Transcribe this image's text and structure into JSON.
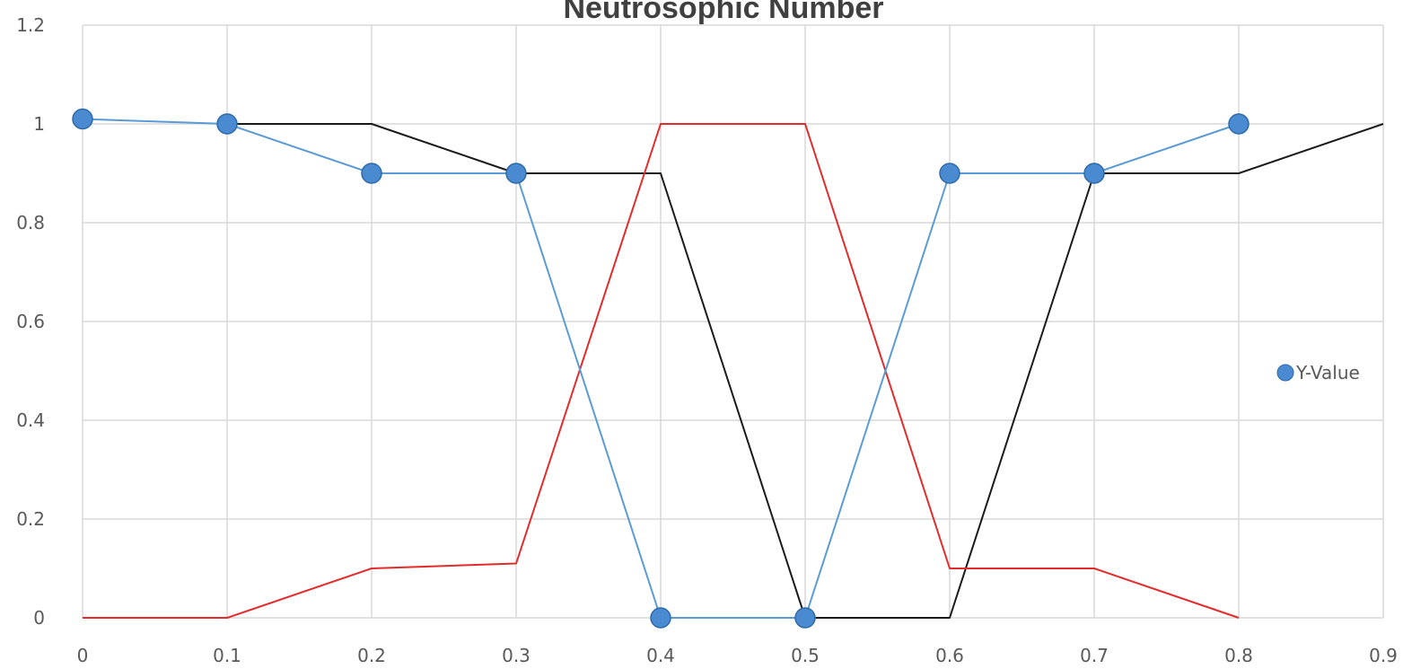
{
  "chart_data": {
    "type": "line",
    "title": "Neutrosophic Number",
    "xlabel": "",
    "ylabel": "",
    "xlim": [
      0,
      0.9
    ],
    "ylim": [
      0,
      1.2
    ],
    "x_ticks": [
      "0",
      "0.1",
      "0.2",
      "0.3",
      "0.4",
      "0.5",
      "0.6",
      "0.7",
      "0.8",
      "0.9"
    ],
    "y_ticks": [
      "0",
      "0.2",
      "0.4",
      "0.6",
      "0.8",
      "1",
      "1.2"
    ],
    "grid": true,
    "legend_position": "right",
    "series": [
      {
        "name": "Y-Value",
        "color": "#5b9bd5",
        "markers": true,
        "x": [
          0,
          0.1,
          0.2,
          0.3,
          0.4,
          0.5,
          0.6,
          0.7,
          0.8
        ],
        "values": [
          1.01,
          1.0,
          0.9,
          0.9,
          0.0,
          0.0,
          0.9,
          0.9,
          1.0
        ]
      },
      {
        "color": "#1a1a1a",
        "markers": false,
        "x": [
          0.1,
          0.2,
          0.3,
          0.4,
          0.5,
          0.6,
          0.7,
          0.8,
          0.9
        ],
        "values": [
          1.0,
          1.0,
          0.9,
          0.9,
          0.0,
          0.0,
          0.9,
          0.9,
          1.0
        ]
      },
      {
        "color": "#e32b2b",
        "markers": false,
        "x": [
          0,
          0.1,
          0.2,
          0.3,
          0.4,
          0.5,
          0.6,
          0.7,
          0.8
        ],
        "values": [
          0.0,
          0.0,
          0.1,
          0.11,
          1.0,
          1.0,
          0.1,
          0.1,
          0.0
        ]
      }
    ]
  }
}
